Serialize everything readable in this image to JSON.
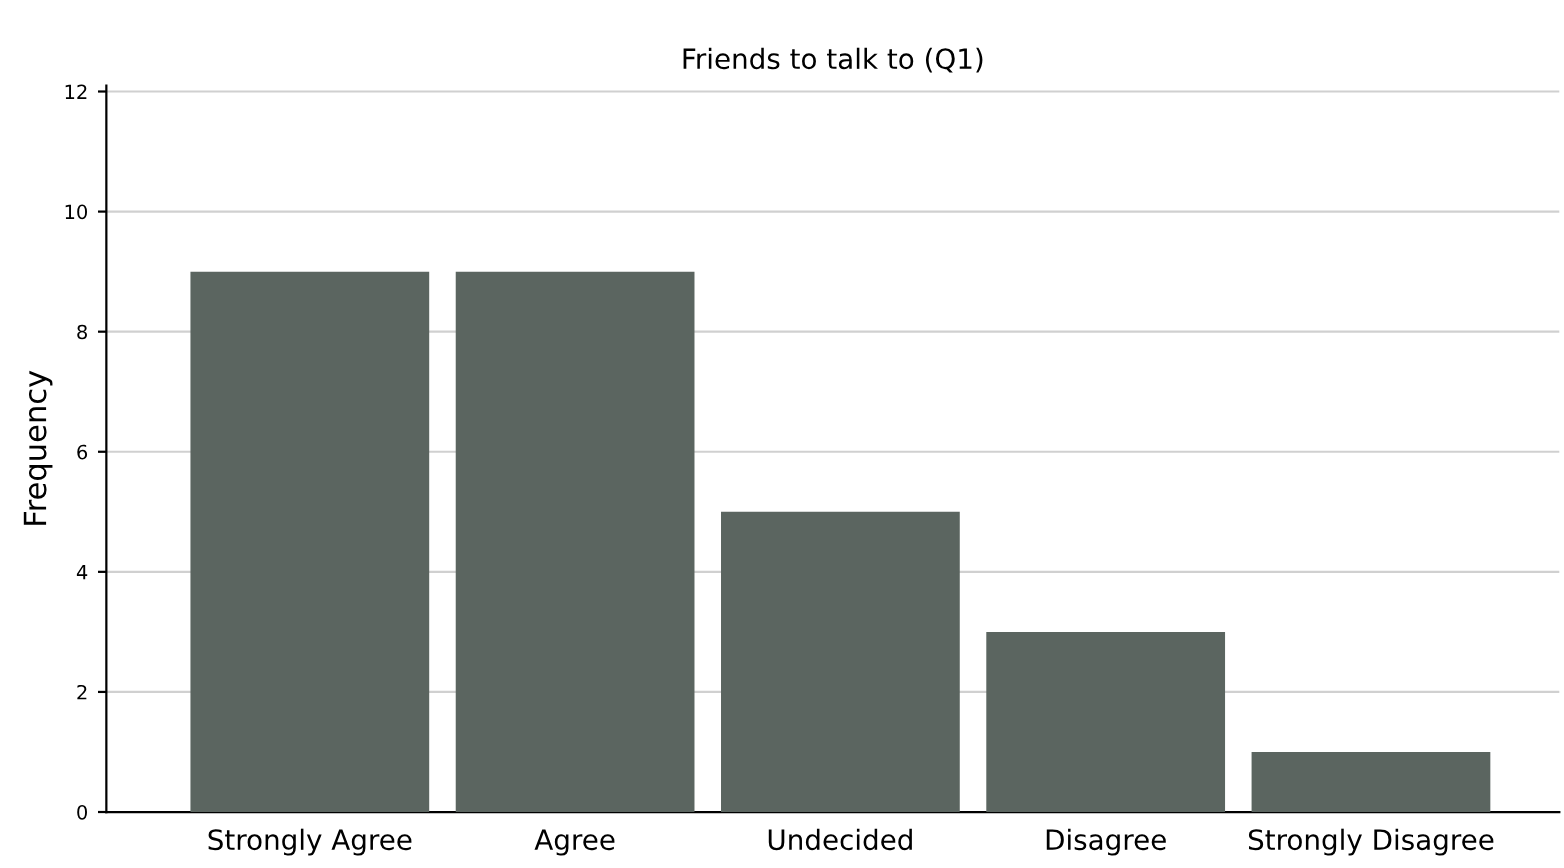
{
  "chart_data": {
    "type": "bar",
    "title": "Friends to talk to (Q1)",
    "ylabel": "Frequency",
    "categories": [
      "Strongly Agree",
      "Agree",
      "Undecided",
      "Disagree",
      "Strongly Disagree"
    ],
    "values": [
      9,
      9,
      5,
      3,
      1
    ],
    "color": "#5b6560",
    "ylim": [
      0,
      12.1
    ],
    "yticks": [
      0,
      2,
      4,
      6,
      8,
      10,
      12
    ],
    "grid": "y",
    "legend": false
  }
}
